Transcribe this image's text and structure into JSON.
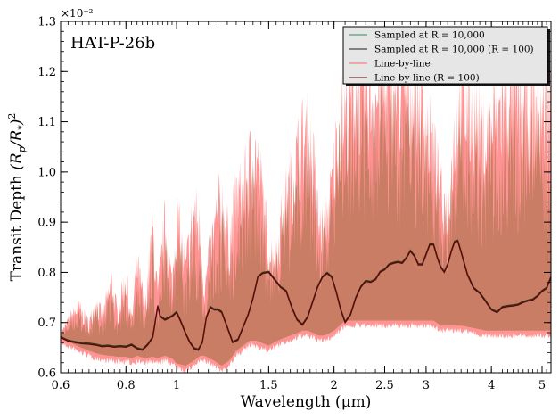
{
  "chart_data": {
    "type": "line",
    "title": "",
    "annotation": "HAT-P-26b",
    "xlabel": "Wavelength (μm)",
    "ylabel": "Transit Depth (R_p/R_*)^2",
    "y_offset_label": "×10⁻²",
    "x_scale": "log",
    "xlim": [
      0.6,
      5.2
    ],
    "ylim": [
      0.6,
      1.3
    ],
    "x_ticks": [
      {
        "value": 0.6,
        "label": "0.6"
      },
      {
        "value": 0.8,
        "label": "0.8"
      },
      {
        "value": 1.0,
        "label": "1"
      },
      {
        "value": 1.5,
        "label": "1.5"
      },
      {
        "value": 2.0,
        "label": "2"
      },
      {
        "value": 2.5,
        "label": "2.5"
      },
      {
        "value": 3.0,
        "label": "3"
      },
      {
        "value": 4.0,
        "label": "4"
      },
      {
        "value": 5.0,
        "label": "5"
      }
    ],
    "y_ticks": [
      {
        "value": 0.6,
        "label": "0.6"
      },
      {
        "value": 0.7,
        "label": "0.7"
      },
      {
        "value": 0.8,
        "label": "0.8"
      },
      {
        "value": 0.9,
        "label": "0.9"
      },
      {
        "value": 1.0,
        "label": "1.0"
      },
      {
        "value": 1.1,
        "label": "1.1"
      },
      {
        "value": 1.2,
        "label": "1.2"
      },
      {
        "value": 1.3,
        "label": "1.3"
      }
    ],
    "grid": false,
    "legend_position": "top-right",
    "series": [
      {
        "name": "Sampled at R = 10,000",
        "color": "#2e8b57",
        "style": "thin line",
        "note_envelope_upper_x": [
          0.6,
          0.63,
          0.65,
          0.68,
          0.7,
          0.72,
          0.74,
          0.75,
          0.77,
          0.8,
          0.82,
          0.84,
          0.87,
          0.9,
          0.92,
          0.95,
          0.98,
          1.0,
          1.04,
          1.08,
          1.11,
          1.13,
          1.18,
          1.22,
          1.26,
          1.3,
          1.34,
          1.38,
          1.42,
          1.46,
          1.5,
          1.56,
          1.6,
          1.65,
          1.7,
          1.74,
          1.78,
          1.83,
          1.87,
          1.91,
          1.96,
          2.0,
          2.05,
          2.1,
          2.15,
          2.2,
          2.3,
          2.4,
          2.5,
          2.6,
          2.7,
          2.8,
          2.9,
          3.0,
          3.1,
          3.2,
          3.3,
          3.4,
          3.5,
          3.7,
          3.9,
          4.0,
          4.2,
          4.4,
          4.6,
          4.8,
          5.0,
          5.2
        ],
        "note_envelope_upper_y": [
          0.68,
          0.73,
          0.75,
          0.71,
          0.77,
          0.73,
          0.78,
          0.82,
          0.74,
          0.83,
          0.72,
          0.86,
          0.75,
          0.95,
          0.78,
          0.96,
          0.81,
          0.98,
          0.85,
          1.0,
          0.94,
          0.8,
          0.95,
          1.03,
          0.92,
          1.02,
          1.04,
          1.1,
          1.13,
          1.03,
          0.88,
          0.9,
          1.0,
          1.05,
          1.12,
          1.16,
          1.17,
          1.09,
          0.95,
          0.94,
          1.0,
          1.1,
          1.2,
          1.22,
          1.25,
          1.28,
          1.28,
          1.27,
          1.28,
          1.27,
          1.27,
          1.27,
          1.25,
          1.2,
          1.13,
          1.02,
          0.98,
          1.18,
          1.25,
          1.22,
          1.15,
          1.2,
          1.25,
          1.25,
          1.24,
          1.24,
          1.23,
          1.25
        ],
        "note_envelope_lower_y": [
          0.665,
          0.655,
          0.648,
          0.64,
          0.635,
          0.632,
          0.63,
          0.63,
          0.628,
          0.628,
          0.625,
          0.63,
          0.625,
          0.628,
          0.625,
          0.63,
          0.625,
          0.615,
          0.61,
          0.62,
          0.63,
          0.63,
          0.62,
          0.61,
          0.62,
          0.64,
          0.65,
          0.66,
          0.66,
          0.655,
          0.65,
          0.66,
          0.665,
          0.67,
          0.675,
          0.68,
          0.68,
          0.675,
          0.67,
          0.67,
          0.675,
          0.68,
          0.69,
          0.7,
          0.7,
          0.7,
          0.7,
          0.7,
          0.7,
          0.7,
          0.7,
          0.7,
          0.7,
          0.7,
          0.7,
          0.69,
          0.69,
          0.69,
          0.69,
          0.685,
          0.68,
          0.68,
          0.68,
          0.68,
          0.68,
          0.68,
          0.68,
          0.68
        ]
      },
      {
        "name": "Sampled at R = 10,000 (R = 100)",
        "color": "#1a1a1a",
        "style": "line"
      },
      {
        "name": "Line-by-line",
        "color": "#ff6666",
        "style": "thin line"
      },
      {
        "name": "Line-by-line (R = 100)",
        "color": "#5a0a0a",
        "style": "line",
        "x": [
          0.6,
          0.62,
          0.64,
          0.66,
          0.68,
          0.7,
          0.72,
          0.74,
          0.76,
          0.78,
          0.8,
          0.82,
          0.84,
          0.86,
          0.88,
          0.9,
          0.92,
          0.93,
          0.95,
          0.98,
          1.0,
          1.02,
          1.04,
          1.06,
          1.08,
          1.1,
          1.12,
          1.14,
          1.16,
          1.18,
          1.2,
          1.22,
          1.25,
          1.28,
          1.31,
          1.34,
          1.37,
          1.4,
          1.43,
          1.46,
          1.5,
          1.54,
          1.58,
          1.62,
          1.66,
          1.7,
          1.74,
          1.78,
          1.82,
          1.86,
          1.9,
          1.94,
          1.98,
          2.02,
          2.06,
          2.1,
          2.15,
          2.2,
          2.25,
          2.3,
          2.35,
          2.4,
          2.45,
          2.5,
          2.55,
          2.6,
          2.65,
          2.7,
          2.75,
          2.8,
          2.85,
          2.9,
          2.95,
          3.0,
          3.05,
          3.1,
          3.15,
          3.2,
          3.25,
          3.3,
          3.35,
          3.4,
          3.45,
          3.5,
          3.6,
          3.7,
          3.8,
          3.9,
          4.0,
          4.1,
          4.2,
          4.3,
          4.4,
          4.5,
          4.6,
          4.7,
          4.8,
          4.9,
          5.0,
          5.1,
          5.2
        ],
        "y": [
          0.67,
          0.663,
          0.66,
          0.658,
          0.657,
          0.655,
          0.652,
          0.653,
          0.651,
          0.652,
          0.651,
          0.655,
          0.648,
          0.645,
          0.655,
          0.67,
          0.732,
          0.712,
          0.705,
          0.712,
          0.72,
          0.7,
          0.678,
          0.66,
          0.648,
          0.645,
          0.66,
          0.71,
          0.73,
          0.725,
          0.725,
          0.72,
          0.69,
          0.66,
          0.665,
          0.69,
          0.715,
          0.748,
          0.79,
          0.798,
          0.8,
          0.785,
          0.77,
          0.762,
          0.73,
          0.705,
          0.695,
          0.71,
          0.74,
          0.77,
          0.79,
          0.798,
          0.79,
          0.76,
          0.725,
          0.7,
          0.715,
          0.748,
          0.77,
          0.782,
          0.78,
          0.785,
          0.8,
          0.805,
          0.815,
          0.818,
          0.82,
          0.818,
          0.828,
          0.842,
          0.832,
          0.815,
          0.815,
          0.835,
          0.855,
          0.855,
          0.83,
          0.81,
          0.8,
          0.815,
          0.84,
          0.86,
          0.862,
          0.84,
          0.795,
          0.768,
          0.758,
          0.742,
          0.725,
          0.72,
          0.73,
          0.732,
          0.733,
          0.735,
          0.74,
          0.743,
          0.745,
          0.752,
          0.762,
          0.768,
          0.79
        ]
      }
    ]
  }
}
